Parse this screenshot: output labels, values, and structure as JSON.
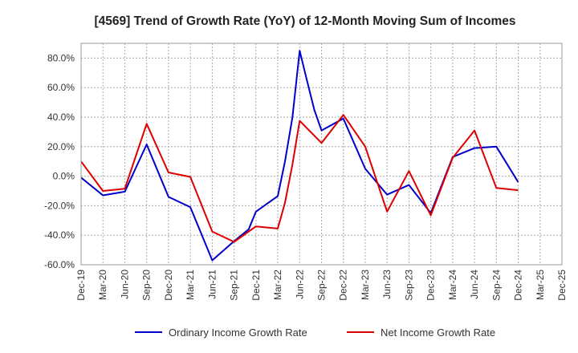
{
  "chart_data": {
    "type": "line",
    "title": "[4569]  Trend of Growth Rate (YoY) of 12-Month Moving Sum of Incomes",
    "xlabel": "",
    "ylabel": "",
    "ylim": [
      -60,
      90
    ],
    "yticks": [
      80,
      60,
      40,
      20,
      0,
      -20,
      -40,
      -60
    ],
    "ytick_labels": [
      "80.0%",
      "60.0%",
      "40.0%",
      "20.0%",
      "0.0%",
      "-20.0%",
      "-40.0%",
      "-60.0%"
    ],
    "xtick_labels": [
      "Dec-19",
      "Mar-20",
      "Jun-20",
      "Sep-20",
      "Dec-20",
      "Mar-21",
      "Jun-21",
      "Sep-21",
      "Dec-21",
      "Mar-22",
      "Jun-22",
      "Sep-22",
      "Dec-22",
      "Mar-23",
      "Jun-23",
      "Sep-23",
      "Dec-23",
      "Mar-24",
      "Jun-24",
      "Sep-24",
      "Dec-24",
      "Mar-25",
      "Dec-25"
    ],
    "grid": true,
    "legend_position": "bottom",
    "series": [
      {
        "name": "Ordinary Income Growth Rate",
        "color": "#0000cc",
        "points": [
          [
            0,
            -1
          ],
          [
            1,
            -13
          ],
          [
            2,
            -10.5
          ],
          [
            3,
            21.5
          ],
          [
            4,
            -14
          ],
          [
            5,
            -21
          ],
          [
            6,
            -57
          ],
          [
            7,
            -44
          ],
          [
            7.67,
            -36
          ],
          [
            8,
            -24
          ],
          [
            9,
            -13.5
          ],
          [
            9.33,
            10
          ],
          [
            9.67,
            40
          ],
          [
            10,
            85
          ],
          [
            10.33,
            65
          ],
          [
            10.67,
            45
          ],
          [
            11,
            31
          ],
          [
            12,
            39
          ],
          [
            13,
            5
          ],
          [
            14,
            -12.5
          ],
          [
            15,
            -6
          ],
          [
            16,
            -25
          ],
          [
            17,
            13
          ],
          [
            18,
            19
          ],
          [
            19,
            20
          ],
          [
            20,
            -4
          ]
        ]
      },
      {
        "name": "Net Income Growth Rate",
        "color": "#dd0000",
        "points": [
          [
            0,
            10
          ],
          [
            1,
            -10
          ],
          [
            2,
            -8.5
          ],
          [
            3,
            35.5
          ],
          [
            4,
            2.5
          ],
          [
            5,
            -0.5
          ],
          [
            6,
            -37.5
          ],
          [
            7,
            -44.5
          ],
          [
            8,
            -34
          ],
          [
            9,
            -35.5
          ],
          [
            9.33,
            -18
          ],
          [
            9.67,
            8
          ],
          [
            10,
            37.5
          ],
          [
            11,
            22.5
          ],
          [
            12,
            41.5
          ],
          [
            13,
            20
          ],
          [
            14,
            -24
          ],
          [
            15,
            3.5
          ],
          [
            16,
            -26.5
          ],
          [
            17,
            12.5
          ],
          [
            18,
            31
          ],
          [
            19,
            -8
          ],
          [
            20,
            -9.5
          ]
        ]
      }
    ]
  }
}
